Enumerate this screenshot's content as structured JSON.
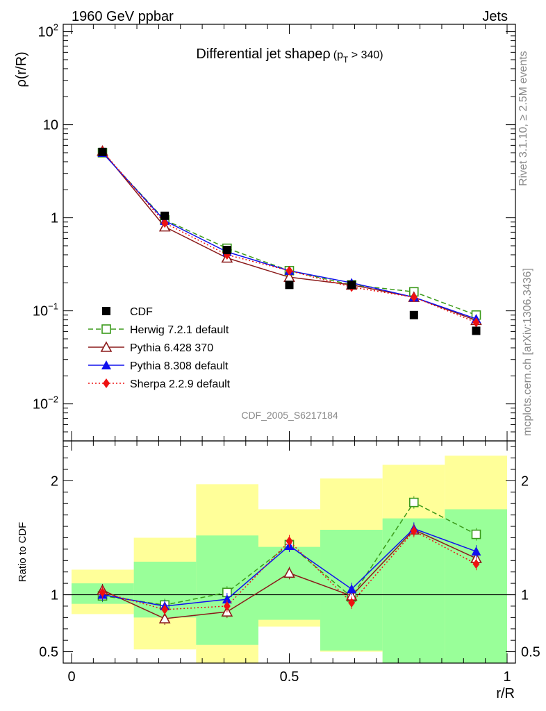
{
  "header": {
    "left": "1960 GeV ppbar",
    "right": "Jets"
  },
  "side_labels": {
    "rivet": "Rivet 3.1.10, ≥ 2.5M events",
    "mcplots": "mcplots.cern.ch [arXiv:1306.3436]"
  },
  "watermark": "CDF_2005_S6217184",
  "chart_data": [
    {
      "type": "line",
      "title": "Differential jet shapeρ",
      "title_suffix": "(p",
      "title_sub": "T",
      "title_cut": " > 340)",
      "ylabel": "ρ(r/R)",
      "xlabel": "",
      "xlim": [
        0,
        1
      ],
      "ylim": [
        0.004,
        120
      ],
      "yscale": "log",
      "y_ticks": [
        {
          "base": "10",
          "exp": "−2",
          "value": 0.01
        },
        {
          "base": "10",
          "exp": "−1",
          "value": 0.1
        },
        {
          "base": "1",
          "exp": "",
          "value": 1
        },
        {
          "base": "10",
          "exp": "",
          "value": 10
        },
        {
          "base": "10",
          "exp": "2",
          "value": 100
        }
      ],
      "legend_position": "bottom-left",
      "x": [
        0.071,
        0.214,
        0.357,
        0.5,
        0.643,
        0.786,
        0.929
      ],
      "series": [
        {
          "name": "CDF",
          "color": "#000000",
          "marker": "square-filled",
          "dash": "",
          "values": [
            5.1,
            1.05,
            0.45,
            0.19,
            0.19,
            0.09,
            0.061
          ]
        },
        {
          "name": "Herwig 7.2.1 default",
          "color": "#3a9a1a",
          "marker": "square-open",
          "dash": "7,4",
          "values": [
            5.0,
            0.95,
            0.47,
            0.27,
            0.19,
            0.16,
            0.09
          ]
        },
        {
          "name": "Pythia 6.428 370",
          "color": "#8b1a1a",
          "marker": "triangle-open",
          "dash": "",
          "values": [
            5.2,
            0.8,
            0.37,
            0.23,
            0.19,
            0.14,
            0.079
          ]
        },
        {
          "name": "Pythia 8.308 default",
          "color": "#1010ee",
          "marker": "triangle-filled",
          "dash": "",
          "values": [
            5.0,
            0.93,
            0.43,
            0.27,
            0.2,
            0.14,
            0.082
          ]
        },
        {
          "name": "Sherpa 2.2.9 default",
          "color": "#ee1111",
          "marker": "diamond-filled",
          "dash": "2,3",
          "values": [
            5.2,
            0.88,
            0.4,
            0.27,
            0.18,
            0.14,
            0.075
          ]
        }
      ]
    },
    {
      "type": "line",
      "title": "",
      "ylabel": "Ratio to CDF",
      "xlabel": "r/R",
      "xlim": [
        0,
        1
      ],
      "ylim": [
        0.4,
        2.35
      ],
      "y_ticks": [
        0.5,
        1,
        2
      ],
      "x_ticks": [
        0,
        0.5,
        1
      ],
      "reference_line": 1,
      "bin_edges": [
        0,
        0.143,
        0.286,
        0.429,
        0.571,
        0.714,
        0.857,
        1.0
      ],
      "yellow_band": {
        "low": [
          0.83,
          0.52,
          0.35,
          0.72,
          0.5,
          0.37,
          0.3
        ],
        "high": [
          1.22,
          1.5,
          1.97,
          1.75,
          2.02,
          2.14,
          2.22
        ]
      },
      "green_band": {
        "low": [
          0.92,
          0.8,
          0.56,
          0.78,
          0.51,
          0.38,
          0.3
        ],
        "high": [
          1.1,
          1.29,
          1.52,
          1.42,
          1.57,
          1.67,
          1.75
        ]
      },
      "x": [
        0.071,
        0.214,
        0.357,
        0.5,
        0.643,
        0.786,
        0.929
      ],
      "series": [
        {
          "name": "Herwig 7.2.1 default",
          "color": "#3a9a1a",
          "marker": "square-open",
          "dash": "7,4",
          "values": [
            0.99,
            0.91,
            1.02,
            1.44,
            0.98,
            1.81,
            1.53
          ]
        },
        {
          "name": "Pythia 6.428 370",
          "color": "#8b1a1a",
          "marker": "triangle-open",
          "dash": "",
          "values": [
            1.04,
            0.79,
            0.85,
            1.19,
            0.99,
            1.57,
            1.32
          ]
        },
        {
          "name": "Pythia 8.308 default",
          "color": "#1010ee",
          "marker": "triangle-filled",
          "dash": "",
          "values": [
            1.0,
            0.9,
            0.96,
            1.43,
            1.05,
            1.58,
            1.38
          ]
        },
        {
          "name": "Sherpa 2.2.9 default",
          "color": "#ee1111",
          "marker": "diamond-filled",
          "dash": "2,3",
          "values": [
            1.02,
            0.87,
            0.9,
            1.47,
            0.93,
            1.56,
            1.27
          ]
        }
      ]
    }
  ]
}
